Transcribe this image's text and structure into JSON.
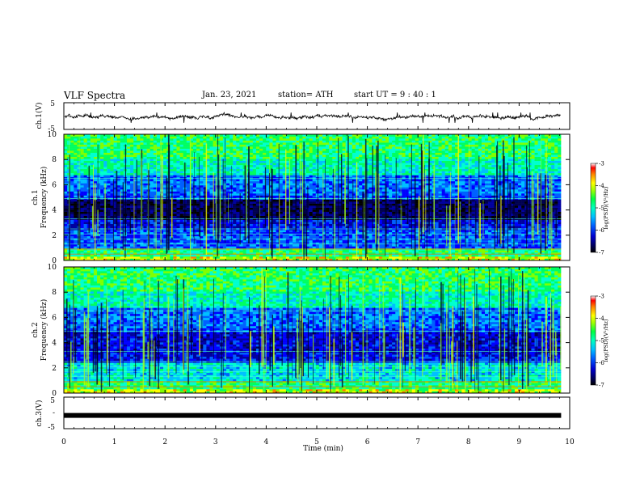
{
  "header": {
    "title": "VLF Spectra",
    "date": "Jan. 23, 2021",
    "station": "station= ATH",
    "start": "start UT = 9 : 40 : 1"
  },
  "chart_data": [
    {
      "type": "line",
      "id": "ch1-waveform",
      "ylabel": "ch.1(V)",
      "ylim": [
        -5,
        5
      ],
      "yticks": [
        5,
        -5
      ],
      "xlim": [
        0,
        9.83
      ],
      "baseline": -0.3,
      "series": [
        {
          "color": "#000000"
        }
      ]
    },
    {
      "type": "heatmap",
      "id": "ch1-spectrogram",
      "ylabel": [
        "ch.1",
        "Frequency (kHz)"
      ],
      "ylim": [
        0,
        10
      ],
      "yticks": [
        0,
        2,
        4,
        6,
        8,
        10
      ],
      "xlim": [
        0,
        9.83
      ],
      "colorbar": {
        "label": "log(PSD)(V²/Hz)",
        "range": [
          -7,
          -3
        ],
        "ticks": [
          "-3",
          "-4",
          "-5",
          "-6",
          "-7"
        ]
      }
    },
    {
      "type": "heatmap",
      "id": "ch2-spectrogram",
      "ylabel": [
        "ch.2",
        "Frequency (kHz)"
      ],
      "ylim": [
        0,
        10
      ],
      "yticks": [
        0,
        2,
        4,
        6,
        8,
        10
      ],
      "xlim": [
        0,
        9.83
      ],
      "colorbar": {
        "label": "log(PSD)(V²/Hz)",
        "range": [
          -7,
          -3
        ],
        "ticks": [
          "-3",
          "-4",
          "-5",
          "-6",
          "-7"
        ]
      }
    },
    {
      "type": "line",
      "id": "ch3-waveform",
      "ylabel": "ch.3(V)",
      "ylim": [
        -5,
        5
      ],
      "yticks": [
        5,
        0,
        -5
      ],
      "yticklabels": [
        "5",
        "-",
        "-5"
      ],
      "xlim": [
        0,
        9.83
      ],
      "baseline": -0.8,
      "series": [
        {
          "color": "#000000"
        }
      ]
    }
  ],
  "xaxis": {
    "label": "Time (min)",
    "range": [
      0,
      10
    ],
    "ticks": [
      "0",
      "1",
      "2",
      "3",
      "4",
      "5",
      "6",
      "7",
      "8",
      "9",
      "10"
    ]
  },
  "colormap": [
    "#000000",
    "#000050",
    "#0000a0",
    "#0000ff",
    "#0060ff",
    "#00c0ff",
    "#00ffd0",
    "#00ff60",
    "#80ff00",
    "#ffff00",
    "#ff8000",
    "#ff0000",
    "#ffffff"
  ]
}
